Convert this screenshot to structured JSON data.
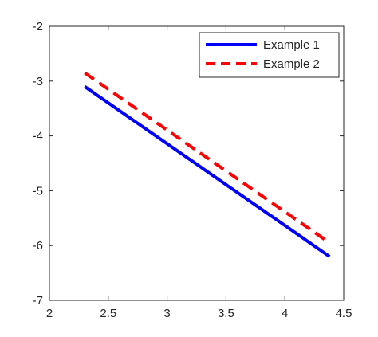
{
  "chart_data": {
    "type": "line",
    "title": "",
    "xlabel": "",
    "ylabel": "",
    "xlim": [
      2,
      4.5
    ],
    "ylim": [
      -7,
      -2
    ],
    "xticks": [
      2,
      2.5,
      3,
      3.5,
      4,
      4.5
    ],
    "yticks": [
      -2,
      -3,
      -4,
      -5,
      -6,
      -7
    ],
    "xtick_labels": [
      "2",
      "2.5",
      "3",
      "3.5",
      "4",
      "4.5"
    ],
    "ytick_labels": [
      "-2",
      "-3",
      "-4",
      "-5",
      "-6",
      "-7"
    ],
    "grid": false,
    "legend": "top-right",
    "series": [
      {
        "name": "Example 1",
        "color": "#0000ff",
        "style": "solid",
        "x": [
          2.3,
          4.38
        ],
        "y": [
          -3.1,
          -6.2
        ]
      },
      {
        "name": "Example 2",
        "color": "#ff0000",
        "style": "dashed",
        "x": [
          2.3,
          4.38
        ],
        "y": [
          -2.85,
          -5.95
        ]
      }
    ]
  }
}
